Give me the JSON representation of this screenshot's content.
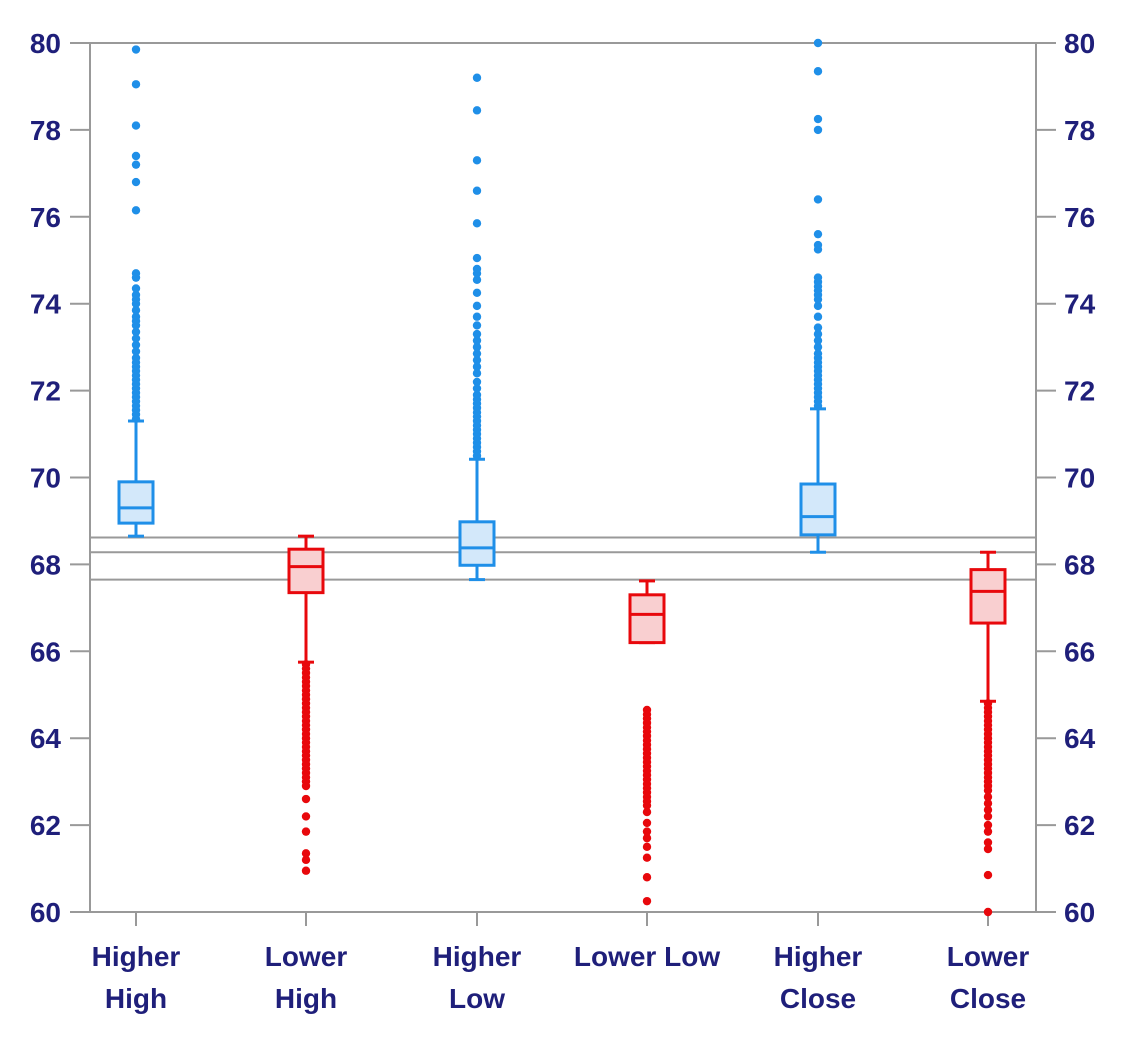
{
  "chart_data": {
    "type": "box",
    "title": "",
    "xlabel": "",
    "ylabel": "",
    "ylim": [
      60,
      80
    ],
    "yticks": [
      60,
      62,
      64,
      66,
      68,
      70,
      72,
      74,
      76,
      78,
      80
    ],
    "ytick_labels": [
      "60",
      "62",
      "64",
      "66",
      "68",
      "70",
      "72",
      "74",
      "76",
      "78",
      "80"
    ],
    "secondary_y_axis": true,
    "reference_lines": [
      68.62,
      68.28,
      67.65
    ],
    "colors": {
      "higher_stroke": "#1f8fe8",
      "higher_fill": "#d3e8fa",
      "lower_stroke": "#e8080c",
      "lower_fill": "#f9cfd0",
      "axis_text": "#1f1f7a",
      "axis_line": "#999999"
    },
    "categories": [
      {
        "label": [
          "Higher",
          "High"
        ],
        "group": "higher",
        "whisker_low": 68.65,
        "q1": 68.95,
        "median": 69.3,
        "q3": 69.9,
        "whisker_high": 71.3,
        "outliers": [
          71.35,
          71.45,
          71.55,
          71.65,
          71.75,
          71.85,
          71.95,
          72.05,
          72.15,
          72.25,
          72.35,
          72.45,
          72.55,
          72.65,
          72.75,
          72.9,
          73.05,
          73.2,
          73.35,
          73.5,
          73.6,
          73.7,
          73.85,
          74.0,
          74.1,
          74.2,
          74.35,
          74.6,
          74.7,
          76.15,
          76.8,
          77.2,
          77.4,
          78.1,
          79.05,
          79.85
        ]
      },
      {
        "label": [
          "Lower",
          "High"
        ],
        "group": "lower",
        "whisker_low": 65.75,
        "q1": 67.35,
        "median": 67.95,
        "q3": 68.35,
        "whisker_high": 68.65,
        "outliers": [
          65.7,
          65.6,
          65.5,
          65.4,
          65.3,
          65.2,
          65.1,
          65.0,
          64.9,
          64.8,
          64.7,
          64.6,
          64.5,
          64.4,
          64.3,
          64.2,
          64.1,
          64.0,
          63.9,
          63.8,
          63.7,
          63.6,
          63.5,
          63.4,
          63.3,
          63.2,
          63.1,
          63.0,
          62.9,
          62.6,
          62.2,
          61.85,
          61.35,
          61.2,
          60.95
        ]
      },
      {
        "label": [
          "Higher",
          "Low"
        ],
        "group": "higher",
        "whisker_low": 67.65,
        "q1": 67.98,
        "median": 68.38,
        "q3": 68.98,
        "whisker_high": 70.42,
        "outliers": [
          70.5,
          70.6,
          70.7,
          70.8,
          70.9,
          71.0,
          71.1,
          71.2,
          71.3,
          71.4,
          71.5,
          71.6,
          71.7,
          71.8,
          71.9,
          72.05,
          72.2,
          72.4,
          72.55,
          72.7,
          72.85,
          73.0,
          73.15,
          73.3,
          73.5,
          73.7,
          73.95,
          74.25,
          74.55,
          74.7,
          74.8,
          75.05,
          75.85,
          76.6,
          77.3,
          78.45,
          79.2
        ]
      },
      {
        "label": [
          "Lower Low"
        ],
        "group": "lower",
        "whisker_low": 66.2,
        "q1": 66.2,
        "median": 66.85,
        "q3": 67.3,
        "whisker_high": 67.62,
        "outliers": [
          64.65,
          64.55,
          64.45,
          64.35,
          64.25,
          64.15,
          64.05,
          63.95,
          63.85,
          63.75,
          63.65,
          63.55,
          63.45,
          63.35,
          63.25,
          63.15,
          63.05,
          62.95,
          62.85,
          62.75,
          62.65,
          62.55,
          62.45,
          62.3,
          62.05,
          61.85,
          61.7,
          61.5,
          61.25,
          60.8,
          60.25
        ]
      },
      {
        "label": [
          "Higher",
          "Close"
        ],
        "group": "higher",
        "whisker_low": 68.28,
        "q1": 68.68,
        "median": 69.1,
        "q3": 69.85,
        "whisker_high": 71.58,
        "outliers": [
          71.65,
          71.75,
          71.85,
          71.95,
          72.05,
          72.15,
          72.25,
          72.35,
          72.45,
          72.55,
          72.65,
          72.75,
          72.85,
          73.0,
          73.15,
          73.3,
          73.45,
          73.7,
          73.95,
          74.1,
          74.2,
          74.3,
          74.4,
          74.5,
          74.6,
          75.25,
          75.35,
          75.6,
          76.4,
          78.0,
          78.25,
          79.35,
          80.0
        ]
      },
      {
        "label": [
          "Lower",
          "Close"
        ],
        "group": "lower",
        "whisker_low": 64.85,
        "q1": 66.65,
        "median": 67.38,
        "q3": 67.88,
        "whisker_high": 68.28,
        "outliers": [
          64.8,
          64.7,
          64.6,
          64.5,
          64.4,
          64.3,
          64.2,
          64.1,
          64.0,
          63.9,
          63.8,
          63.7,
          63.6,
          63.5,
          63.4,
          63.3,
          63.2,
          63.1,
          63.0,
          62.9,
          62.8,
          62.65,
          62.5,
          62.35,
          62.2,
          62.0,
          61.85,
          61.6,
          61.45,
          60.85,
          60.0
        ]
      }
    ]
  }
}
